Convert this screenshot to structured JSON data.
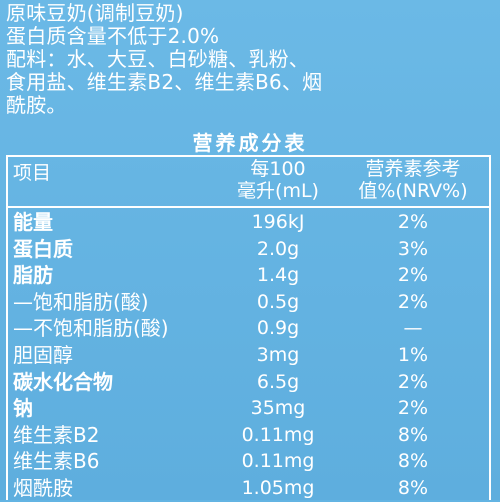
{
  "header": {
    "lines": [
      "原味豆奶(调制豆奶)",
      "蛋白质含量不低于2.0%",
      "配料：水、大豆、白砂糖、乳粉、",
      "食用盐、维生素B2、维生素B6、烟",
      "酰胺。"
    ]
  },
  "nutrition": {
    "title": "营养成分表",
    "columns": {
      "item": "项目",
      "per_line1": "每100",
      "per_line2": "毫升(mL)",
      "nrv_line1": "营养素参考",
      "nrv_line2": "值%(NRV%)"
    },
    "rows": [
      {
        "name": "能量",
        "per": "196kJ",
        "nrv": "2%"
      },
      {
        "name": "蛋白质",
        "per": "2.0g",
        "nrv": "3%"
      },
      {
        "name": "脂肪",
        "per": "1.4g",
        "nrv": "2%"
      },
      {
        "name": "—饱和脂肪(酸)",
        "per": "0.5g",
        "nrv": "2%"
      },
      {
        "name": "—不饱和脂肪(酸)",
        "per": "0.9g",
        "nrv": "—"
      },
      {
        "name": "胆固醇",
        "per": "3mg",
        "nrv": "1%"
      },
      {
        "name": "碳水化合物",
        "per": "6.5g",
        "nrv": "2%"
      },
      {
        "name": "钠",
        "per": "35mg",
        "nrv": "2%"
      },
      {
        "name": "维生素B2",
        "per": "0.11mg",
        "nrv": "8%"
      },
      {
        "name": "维生素B6",
        "per": "0.11mg",
        "nrv": "8%"
      },
      {
        "name": "烟酰胺",
        "per": "1.05mg",
        "nrv": "8%"
      }
    ]
  },
  "colors": {
    "background": "#63b4e3",
    "text": "#ffffff"
  }
}
